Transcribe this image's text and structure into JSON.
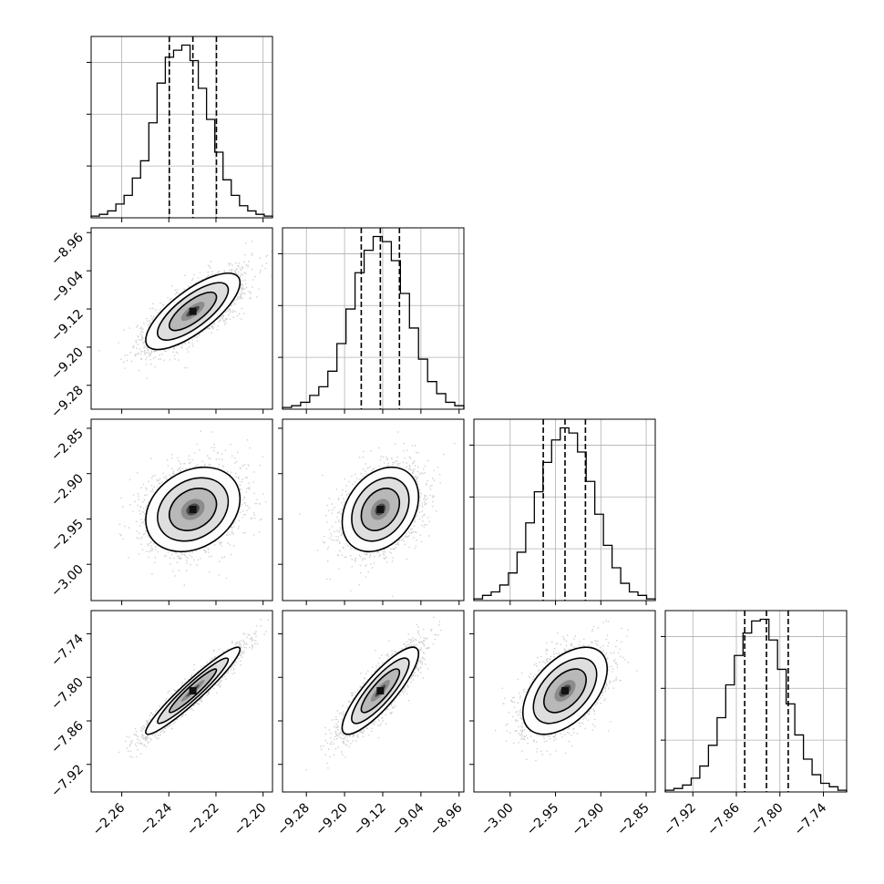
{
  "chart_data": {
    "type": "corner",
    "title": "",
    "parameters": [
      "",
      "",
      "",
      ""
    ],
    "grid": true,
    "params": [
      {
        "name": "",
        "range": [
          -2.273,
          -2.196
        ],
        "ticks": [
          -2.26,
          -2.24,
          -2.22,
          -2.2
        ],
        "tick_labels": [
          "−2.26",
          "−2.24",
          "−2.22",
          "−2.20"
        ],
        "quantiles": [
          -2.2398,
          -2.2298,
          -2.2198
        ],
        "hist": [
          0.01,
          0.02,
          0.04,
          0.08,
          0.13,
          0.23,
          0.33,
          0.55,
          0.78,
          0.93,
          0.97,
          1.0,
          0.91,
          0.75,
          0.57,
          0.38,
          0.22,
          0.13,
          0.07,
          0.04,
          0.02,
          0.01
        ]
      },
      {
        "name": "",
        "range": [
          -9.33,
          -8.95
        ],
        "ticks": [
          -9.28,
          -9.2,
          -9.12,
          -9.04,
          -8.96
        ],
        "tick_labels": [
          "−9.28",
          "−9.20",
          "−9.12",
          "−9.04",
          "−8.96"
        ],
        "quantiles": [
          -9.165,
          -9.125,
          -9.085
        ],
        "hist": [
          0.01,
          0.02,
          0.04,
          0.08,
          0.13,
          0.22,
          0.38,
          0.58,
          0.79,
          0.92,
          1.0,
          0.97,
          0.86,
          0.67,
          0.47,
          0.29,
          0.16,
          0.09,
          0.04,
          0.02
        ]
      },
      {
        "name": "",
        "range": [
          -3.04,
          -2.84
        ],
        "ticks": [
          -3.0,
          -2.95,
          -2.9,
          -2.85
        ],
        "tick_labels": [
          "−3.00",
          "−2.95",
          "−2.90",
          "−2.85"
        ],
        "quantiles": [
          -2.9635,
          -2.9395,
          -2.917
        ],
        "hist": [
          0.01,
          0.03,
          0.05,
          0.09,
          0.16,
          0.28,
          0.45,
          0.63,
          0.8,
          0.93,
          1.0,
          0.97,
          0.86,
          0.69,
          0.5,
          0.32,
          0.19,
          0.1,
          0.05,
          0.03,
          0.01
        ]
      },
      {
        "name": "",
        "range": [
          -7.958,
          -7.708
        ],
        "ticks": [
          -7.92,
          -7.86,
          -7.8,
          -7.74
        ],
        "tick_labels": [
          "−7.92",
          "−7.86",
          "−7.80",
          "−7.74"
        ],
        "quantiles": [
          -7.8485,
          -7.8185,
          -7.7885
        ],
        "hist": [
          0.01,
          0.02,
          0.04,
          0.08,
          0.15,
          0.27,
          0.43,
          0.62,
          0.79,
          0.92,
          0.99,
          1.0,
          0.88,
          0.71,
          0.51,
          0.33,
          0.19,
          0.1,
          0.05,
          0.03,
          0.01
        ]
      }
    ],
    "pairs": [
      {
        "x": 0,
        "y": 1,
        "correlation": 0.75
      },
      {
        "x": 0,
        "y": 2,
        "correlation": 0.25
      },
      {
        "x": 1,
        "y": 2,
        "correlation": 0.3
      },
      {
        "x": 0,
        "y": 3,
        "correlation": 0.95
      },
      {
        "x": 1,
        "y": 3,
        "correlation": 0.85
      },
      {
        "x": 2,
        "y": 3,
        "correlation": 0.5
      }
    ],
    "contour_levels_sigma": [
      0.5,
      1.0,
      1.5,
      2.0
    ]
  }
}
